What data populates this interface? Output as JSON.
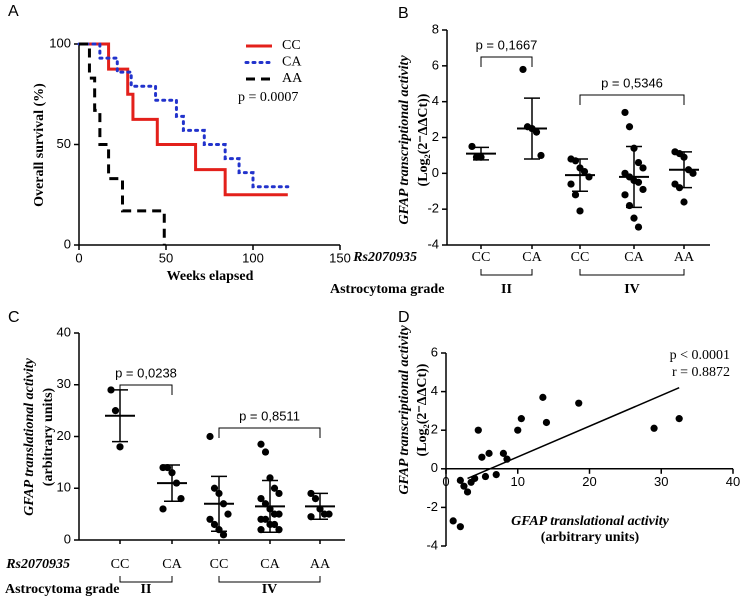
{
  "chart_data": [
    {
      "type": "step",
      "label": "A",
      "xlabel": "Weeks elapsed",
      "ylabel": [
        "Overall survival (%)"
      ],
      "xlim": [
        0,
        150
      ],
      "xticks": [
        0,
        50,
        100,
        150
      ],
      "ylim": [
        0,
        100
      ],
      "yticks": [
        0,
        50,
        100
      ],
      "legend_position": "upper right",
      "annotations": [
        "p = 0.0007"
      ],
      "series": [
        {
          "name": "CC",
          "color": "#e3201b",
          "style": "solid",
          "x": [
            0,
            17,
            28,
            31,
            45,
            67,
            84,
            120
          ],
          "y": [
            100,
            87.5,
            75,
            62.5,
            50,
            37.5,
            25,
            25
          ]
        },
        {
          "name": "CA",
          "color": "#2233cc",
          "style": "dotted",
          "x": [
            0,
            12,
            22,
            30,
            44,
            56,
            60,
            72,
            84,
            92,
            100,
            120
          ],
          "y": [
            100,
            93,
            86,
            79,
            72,
            64,
            57,
            50,
            43,
            36,
            29,
            29
          ]
        },
        {
          "name": "AA",
          "color": "#000000",
          "style": "dashed",
          "x": [
            0,
            6,
            9,
            12,
            17,
            25,
            49
          ],
          "y": [
            100,
            83,
            67,
            50,
            33,
            17,
            0
          ]
        }
      ]
    },
    {
      "type": "dot",
      "label": "B",
      "ylabel": [
        "GFAP transcriptional activity",
        "(Log₂(2⁻ΔΔCt))"
      ],
      "ylim": [
        -4,
        8
      ],
      "yticks": [
        -4,
        -2,
        0,
        2,
        4,
        6,
        8
      ],
      "color": "#000000",
      "category_title": "Rs2070935",
      "group_title": "Astrocytoma grade",
      "groups": [
        {
          "name": "II",
          "comparison": "p = 0,1667",
          "categories": [
            "CC",
            "CA"
          ],
          "points": [
            [
              1.5,
              0.9,
              0.9
            ],
            [
              5.8,
              2.6,
              2.5,
              2.3,
              1.0
            ]
          ],
          "mean": [
            1.1,
            2.5
          ],
          "sd": [
            0.35,
            1.7
          ]
        },
        {
          "name": "IV",
          "comparison": "p = 0,5346",
          "categories": [
            "CC",
            "CA",
            "AA"
          ],
          "points": [
            [
              0.8,
              0.7,
              0.3,
              0.1,
              -0.2,
              -0.6,
              -1.2,
              -2.1
            ],
            [
              3.4,
              2.6,
              1.4,
              0.6,
              0.3,
              0.0,
              -0.2,
              -0.4,
              -0.5,
              -0.9,
              -1.2,
              -1.8,
              -2.5,
              -3.0
            ],
            [
              1.2,
              1.1,
              0.9,
              0.2,
              0.0,
              -0.6,
              -0.8,
              -1.6
            ]
          ],
          "mean": [
            -0.1,
            -0.2,
            0.2
          ],
          "sd": [
            0.9,
            1.7,
            1.0
          ]
        }
      ]
    },
    {
      "type": "dot",
      "label": "C",
      "ylabel": [
        "GFAP translational activity",
        "(arbitrary units)"
      ],
      "ylim": [
        0,
        40
      ],
      "yticks": [
        0,
        10,
        20,
        30,
        40
      ],
      "color": "#000000",
      "category_title": "Rs2070935",
      "group_title": "Astrocytoma grade",
      "groups": [
        {
          "name": "II",
          "comparison": "p = 0,0238",
          "categories": [
            "CC",
            "CA"
          ],
          "points": [
            [
              29,
              25,
              18
            ],
            [
              14,
              14,
              13,
              11,
              8,
              6
            ]
          ],
          "mean": [
            24,
            11
          ],
          "sd": [
            5,
            3.5
          ]
        },
        {
          "name": "IV",
          "comparison": "p = 0,8511",
          "categories": [
            "CC",
            "CA",
            "AA"
          ],
          "points": [
            [
              20,
              10,
              9,
              7,
              5,
              4,
              3,
              2,
              1
            ],
            [
              18.5,
              17,
              12,
              10,
              9,
              8,
              7,
              6,
              5,
              5,
              4,
              4,
              3,
              3,
              2,
              2
            ],
            [
              9,
              8,
              6,
              5,
              5,
              4.5
            ]
          ],
          "mean": [
            7,
            6.5,
            6.5
          ],
          "sd": [
            5.3,
            5,
            2.5
          ]
        }
      ]
    },
    {
      "type": "scatter",
      "label": "D",
      "xlabel": [
        "GFAP translational activity",
        "(arbitrary units)"
      ],
      "ylabel": [
        "GFAP transcriptional activity",
        "(Log₂(2⁻ΔΔCt))"
      ],
      "xlim": [
        0,
        40
      ],
      "xticks": [
        0,
        10,
        20,
        30,
        40
      ],
      "ylim": [
        -4,
        6
      ],
      "yticks": [
        -4,
        -2,
        0,
        2,
        4,
        6
      ],
      "annotations": [
        "p < 0.0001",
        "r = 0.8872"
      ],
      "color": "#000000",
      "x": [
        1,
        2,
        2,
        2.5,
        3,
        3.5,
        4,
        4.5,
        5,
        5.5,
        6,
        7,
        8,
        8.5,
        10,
        10.5,
        13.5,
        14,
        18.5,
        29,
        32.5
      ],
      "y": [
        -2.7,
        -3.0,
        -0.6,
        -0.9,
        -1.2,
        -0.7,
        -0.5,
        2.0,
        0.6,
        -0.4,
        0.8,
        -0.3,
        0.8,
        0.5,
        2.0,
        2.6,
        3.7,
        2.4,
        3.4,
        2.1,
        2.6
      ],
      "trend": {
        "x": [
          3,
          32.5
        ],
        "y": [
          -0.5,
          4.2
        ]
      }
    }
  ]
}
